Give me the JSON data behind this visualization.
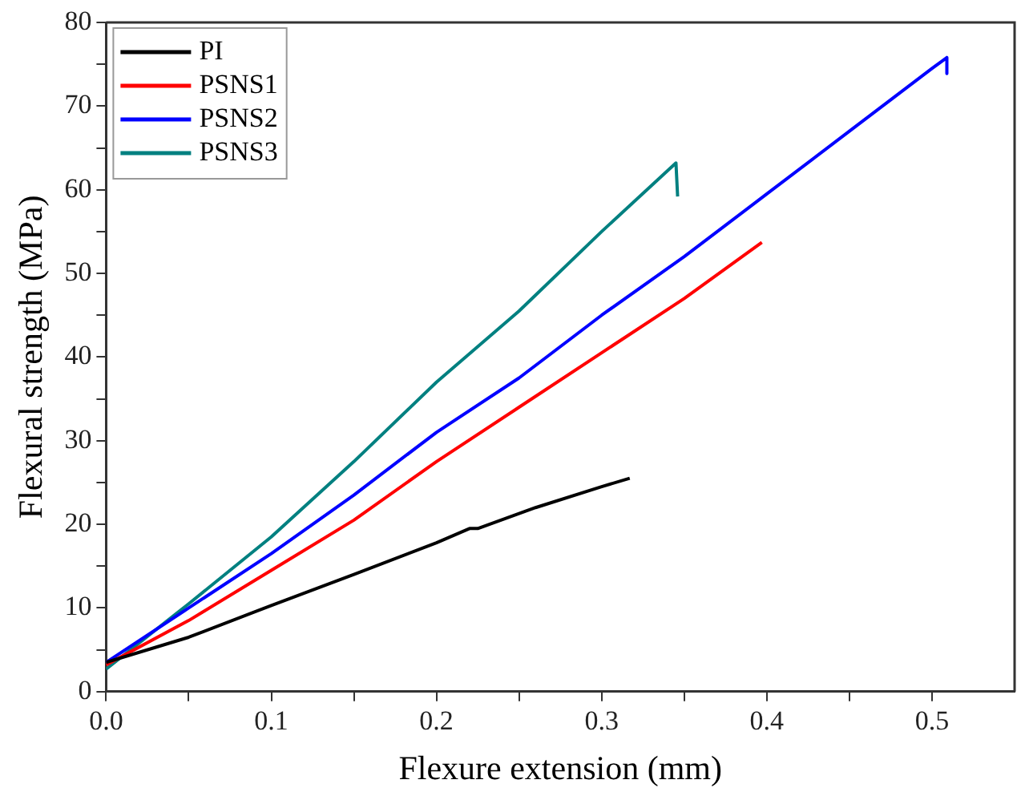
{
  "chart_data": {
    "type": "line",
    "xlabel": "Flexure extension (mm)",
    "ylabel": "Flexural strength (MPa)",
    "xlim": [
      0,
      0.55
    ],
    "ylim": [
      0,
      80
    ],
    "xticks": [
      {
        "value": 0,
        "label": "0.0"
      },
      {
        "value": 0.05,
        "label": null
      },
      {
        "value": 0.1,
        "label": "0.1"
      },
      {
        "value": 0.15,
        "label": null
      },
      {
        "value": 0.2,
        "label": "0.2"
      },
      {
        "value": 0.25,
        "label": null
      },
      {
        "value": 0.3,
        "label": "0.3"
      },
      {
        "value": 0.35,
        "label": null
      },
      {
        "value": 0.4,
        "label": "0.4"
      },
      {
        "value": 0.45,
        "label": null
      },
      {
        "value": 0.5,
        "label": "0.5"
      }
    ],
    "yticks": [
      0,
      {
        "value": 5,
        "label": null
      },
      10,
      {
        "value": 15,
        "label": null
      },
      20,
      {
        "value": 25,
        "label": null
      },
      30,
      {
        "value": 35,
        "label": null
      },
      40,
      {
        "value": 45,
        "label": null
      },
      50,
      {
        "value": 55,
        "label": null
      },
      60,
      {
        "value": 65,
        "label": null
      },
      70,
      {
        "value": 75,
        "label": null
      },
      80
    ],
    "grid": false,
    "legend": "top left",
    "marker": "none",
    "line_style": "solid",
    "series": [
      {
        "name": "PI",
        "color": "#000000",
        "x": [
          0,
          0.05,
          0.1,
          0.15,
          0.2,
          0.22,
          0.225,
          0.26,
          0.3,
          0.317
        ],
        "values": [
          3.5,
          6.5,
          10.3,
          14,
          17.8,
          19.5,
          19.5,
          22,
          24.5,
          25.5
        ]
      },
      {
        "name": "PSNS1",
        "color": "#ff0000",
        "x": [
          0,
          0.05,
          0.1,
          0.15,
          0.2,
          0.25,
          0.3,
          0.35,
          0.397
        ],
        "values": [
          3.2,
          8.5,
          14.5,
          20.5,
          27.5,
          34,
          40.5,
          47,
          53.7
        ]
      },
      {
        "name": "PSNS2",
        "color": "#0000ff",
        "x": [
          0,
          0.05,
          0.1,
          0.15,
          0.2,
          0.25,
          0.3,
          0.35,
          0.4,
          0.45,
          0.5,
          0.509,
          0.509
        ],
        "values": [
          3.5,
          10,
          16.5,
          23.5,
          31,
          37.5,
          45,
          52,
          59.5,
          67,
          74.5,
          75.8,
          73.9
        ]
      },
      {
        "name": "PSNS3",
        "color": "#008080",
        "x": [
          0,
          0.05,
          0.1,
          0.15,
          0.2,
          0.25,
          0.3,
          0.345,
          0.346
        ],
        "values": [
          2.7,
          10.5,
          18.5,
          27.5,
          37,
          45.5,
          55,
          63.2,
          59.2
        ]
      }
    ]
  }
}
